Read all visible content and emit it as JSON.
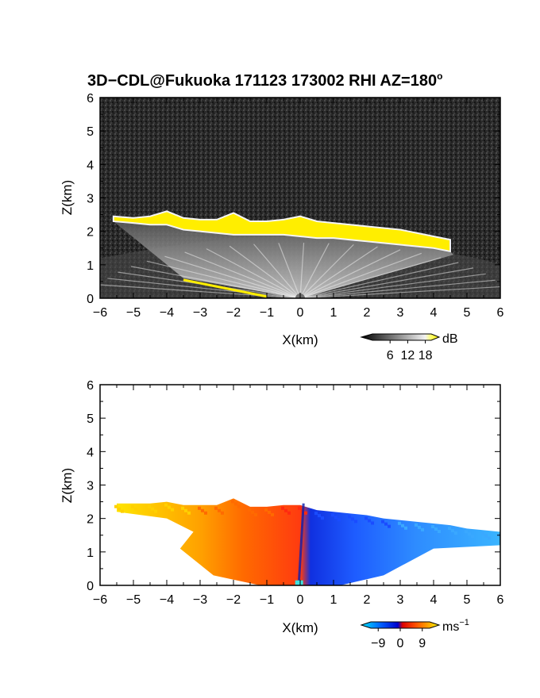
{
  "chart_data": [
    {
      "type": "heatmap",
      "panel": "reflectivity",
      "title": "3D−CDL@Fukuoka 171123 173002 RHI AZ=180°",
      "title_parts": {
        "main": "3D−CDL@Fukuoka 171123 173002 RHI AZ=180",
        "degree": "o"
      },
      "xlabel": "X(km)",
      "ylabel": "Z(km)",
      "xlim": [
        -6,
        6
      ],
      "ylim": [
        0,
        6
      ],
      "xticks": [
        "−6",
        "−5",
        "−4",
        "−3",
        "−2",
        "−1",
        "0",
        "1",
        "2",
        "3",
        "4",
        "5",
        "6"
      ],
      "yticks": [
        "0",
        "1",
        "2",
        "3",
        "4",
        "5",
        "6"
      ],
      "colorbar": {
        "unit": "dB",
        "ticks": [
          "6",
          "12",
          "18"
        ],
        "range": [
          0,
          20
        ]
      },
      "cloud_layer": {
        "x": [
          -5.6,
          -5.0,
          -4.5,
          -4.0,
          -3.5,
          -3.0,
          -2.5,
          -2.0,
          -1.5,
          -1.0,
          -0.5,
          0.0,
          0.5,
          1.0,
          1.5,
          2.0,
          2.5,
          3.0,
          3.5,
          4.0,
          4.5
        ],
        "base_z": [
          2.3,
          2.25,
          2.2,
          2.2,
          2.05,
          2.0,
          1.95,
          1.9,
          1.9,
          1.9,
          1.9,
          1.85,
          1.8,
          1.8,
          1.75,
          1.7,
          1.65,
          1.6,
          1.55,
          1.5,
          1.4
        ],
        "top_z": [
          2.45,
          2.4,
          2.45,
          2.6,
          2.4,
          2.35,
          2.35,
          2.55,
          2.3,
          2.3,
          2.35,
          2.45,
          2.3,
          2.25,
          2.2,
          2.15,
          2.1,
          2.05,
          1.95,
          1.85,
          1.75
        ]
      },
      "surface_echo": {
        "x": [
          -3.5,
          -1.0
        ],
        "z": [
          0.55,
          0.05
        ]
      }
    },
    {
      "type": "heatmap",
      "panel": "doppler_velocity",
      "xlabel": "X(km)",
      "ylabel": "Z(km)",
      "xlim": [
        -6,
        6
      ],
      "ylim": [
        0,
        6
      ],
      "xticks": [
        "−6",
        "−5",
        "−4",
        "−3",
        "−2",
        "−1",
        "0",
        "1",
        "2",
        "3",
        "4",
        "5",
        "6"
      ],
      "yticks": [
        "0",
        "1",
        "2",
        "3",
        "4",
        "5",
        "6"
      ],
      "colorbar": {
        "unit": "ms",
        "unit_exponent": "−1",
        "ticks": [
          "−9",
          "0",
          "9"
        ],
        "range": [
          -12,
          12
        ]
      },
      "echo_region": {
        "x": [
          -5.5,
          -5.0,
          -4.5,
          -4.0,
          -3.5,
          -3.0,
          -2.5,
          -2.0,
          -1.5,
          -1.0,
          -0.5,
          0.0,
          0.5,
          1.0,
          1.5,
          2.0,
          2.5,
          3.0,
          3.5,
          4.0,
          4.5,
          5.0,
          5.5,
          6.0
        ],
        "top_z": [
          2.45,
          2.45,
          2.45,
          2.5,
          2.4,
          2.4,
          2.4,
          2.6,
          2.35,
          2.35,
          2.4,
          2.4,
          2.25,
          2.2,
          2.15,
          2.1,
          2.0,
          1.95,
          1.9,
          1.85,
          1.8,
          1.7,
          1.65,
          1.6
        ],
        "velocity": [
          7,
          7,
          6,
          5,
          4,
          3,
          2.5,
          2,
          1.5,
          1,
          0.5,
          -1,
          -3,
          -4,
          -5,
          -6,
          -6,
          -7,
          -7,
          -8,
          -8,
          -9,
          -9,
          -9
        ]
      },
      "zero_line_x": 0.1
    }
  ]
}
